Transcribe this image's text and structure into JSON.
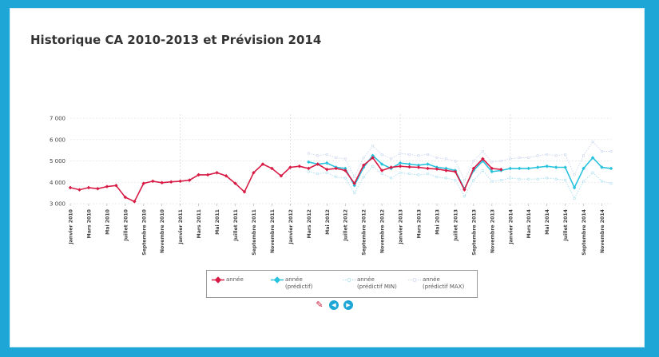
{
  "chart_data": {
    "type": "line",
    "title": "Historique CA 2010-2013 et Prévision 2014",
    "xlabel": "",
    "ylabel": "",
    "ylim": [
      3000,
      7000
    ],
    "yticks": [
      "3 000",
      "4 000",
      "5 000",
      "6 000",
      "7 000"
    ],
    "grid": true,
    "legend_position": "bottom",
    "month_labels": [
      "Janvier 2010",
      "Mars 2010",
      "Mai 2010",
      "Juillet 2010",
      "Septembre 2010",
      "Novembre 2010",
      "Janvier 2011",
      "Mars 2011",
      "Mai 2011",
      "Juillet 2011",
      "Septembre 2011",
      "Novembre 2011",
      "Janvier 2012",
      "Mars 2012",
      "Mai 2012",
      "Juillet 2012",
      "Septembre 2012",
      "Novembre 2012",
      "Janvier 2013",
      "Mars 2013",
      "Mai 2013",
      "Juillet 2013",
      "Septembre 2013",
      "Novembre 2013",
      "Janvier 2014",
      "Mars 2014",
      "Mai 2014",
      "Juillet 2014",
      "Septembre 2014",
      "Novembre 2014"
    ],
    "x_start": "2010-01",
    "series": [
      {
        "name": "année",
        "color": "#d81b45",
        "marker": "diamond",
        "dash": "solid",
        "start_index": 0,
        "values": [
          3750,
          3650,
          3750,
          3700,
          3800,
          3850,
          3300,
          3100,
          3950,
          4050,
          3980,
          4020,
          4050,
          4100,
          4350,
          4350,
          4450,
          4300,
          3950,
          3550,
          4450,
          4850,
          4650,
          4300,
          4700,
          4750,
          4650,
          4850,
          4600,
          4650,
          4550,
          3950,
          4800,
          5150,
          4550,
          4700,
          4750,
          4720,
          4700,
          4650,
          4620,
          4550,
          4500,
          3650,
          4650,
          5100,
          4650,
          4600
        ]
      },
      {
        "name": "année",
        "color": "#2ac3dd",
        "marker": "diamond",
        "dash": "solid",
        "start_index": 26,
        "values": [
          4950,
          4850,
          4900,
          4700,
          4650,
          3850,
          4700,
          5250,
          4850,
          4650,
          4900,
          4850,
          4800,
          4850,
          4700,
          4650,
          4550,
          3700,
          4550,
          5000,
          4500,
          4550,
          4650,
          4650,
          4650,
          4700,
          4750,
          4700,
          4700,
          3750,
          4650,
          5150,
          4700,
          4650
        ]
      },
      {
        "name": "année",
        "color": "#a9dff0",
        "marker": "circle",
        "dash": "dotted",
        "start_index": 26,
        "values": [
          4500,
          4400,
          4450,
          4250,
          4200,
          3500,
          4250,
          4750,
          4400,
          4200,
          4450,
          4400,
          4350,
          4400,
          4250,
          4200,
          4100,
          3350,
          4100,
          4550,
          4050,
          4100,
          4200,
          4150,
          4150,
          4150,
          4200,
          4150,
          4100,
          3250,
          4050,
          4450,
          4050,
          3950
        ]
      },
      {
        "name": "année",
        "color": "#c9d6ee",
        "marker": "circle",
        "dash": "dotted",
        "start_index": 26,
        "values": [
          5350,
          5250,
          5300,
          5150,
          5100,
          4250,
          5150,
          5700,
          5300,
          5100,
          5350,
          5300,
          5250,
          5300,
          5150,
          5100,
          5000,
          4100,
          5000,
          5450,
          4950,
          5000,
          5100,
          5150,
          5150,
          5250,
          5300,
          5250,
          5300,
          4350,
          5250,
          5900,
          5450,
          5450
        ]
      }
    ]
  },
  "legend": [
    {
      "line1": "année",
      "line2": ""
    },
    {
      "line1": "année",
      "line2": "(prédictif)"
    },
    {
      "line1": "année",
      "line2": "(prédictif MIN)"
    },
    {
      "line1": "année",
      "line2": "(prédictif MAX)"
    }
  ],
  "toolbar": [
    {
      "icon": "edit-chart-icon"
    },
    {
      "icon": "previous-icon",
      "glyph": "◀"
    },
    {
      "icon": "next-icon",
      "glyph": "▶"
    }
  ]
}
